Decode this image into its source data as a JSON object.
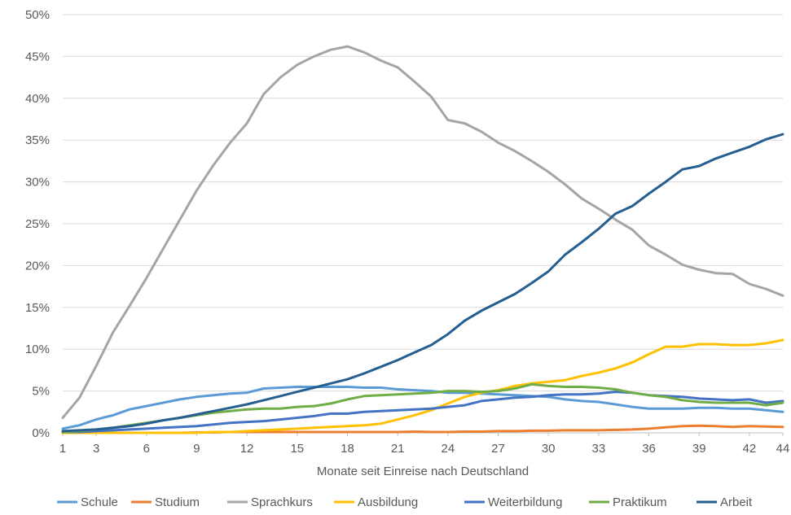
{
  "chart_data": {
    "type": "line",
    "title": "",
    "xlabel": "Monate seit Einreise nach Deutschland",
    "ylabel": "",
    "x": [
      1,
      2,
      3,
      4,
      5,
      6,
      7,
      8,
      9,
      10,
      11,
      12,
      13,
      14,
      15,
      16,
      17,
      18,
      19,
      20,
      21,
      22,
      23,
      24,
      25,
      26,
      27,
      28,
      29,
      30,
      31,
      32,
      33,
      34,
      35,
      36,
      37,
      38,
      39,
      40,
      41,
      42,
      43,
      44
    ],
    "x_ticks": [
      1,
      3,
      6,
      9,
      12,
      15,
      18,
      21,
      24,
      27,
      30,
      33,
      36,
      39,
      42,
      44
    ],
    "xlim": [
      1,
      44
    ],
    "ylim": [
      0,
      50
    ],
    "y_ticks": [
      0,
      5,
      10,
      15,
      20,
      25,
      30,
      35,
      40,
      45,
      50
    ],
    "y_tick_labels": [
      "0%",
      "5%",
      "10%",
      "15%",
      "20%",
      "25%",
      "30%",
      "35%",
      "40%",
      "45%",
      "50%"
    ],
    "grid": "horizontal",
    "legend_position": "bottom",
    "series": [
      {
        "name": "Schule",
        "color": "#5b9bd5",
        "values": [
          0.5,
          0.9,
          1.6,
          2.1,
          2.8,
          3.2,
          3.6,
          4.0,
          4.3,
          4.5,
          4.7,
          4.8,
          5.3,
          5.4,
          5.5,
          5.5,
          5.5,
          5.5,
          5.4,
          5.4,
          5.2,
          5.1,
          5.0,
          4.8,
          4.8,
          4.7,
          4.6,
          4.5,
          4.4,
          4.3,
          4.0,
          3.8,
          3.7,
          3.4,
          3.1,
          2.9,
          2.9,
          2.9,
          3.0,
          3.0,
          2.9,
          2.9,
          2.7,
          2.5
        ]
      },
      {
        "name": "Studium",
        "color": "#ed7d31",
        "values": [
          0,
          0,
          0,
          0,
          0,
          0,
          0,
          0,
          0.05,
          0.05,
          0.1,
          0.1,
          0.1,
          0.1,
          0.1,
          0.1,
          0.1,
          0.1,
          0.1,
          0.1,
          0.1,
          0.15,
          0.1,
          0.1,
          0.15,
          0.15,
          0.2,
          0.2,
          0.25,
          0.25,
          0.3,
          0.3,
          0.3,
          0.35,
          0.4,
          0.5,
          0.65,
          0.8,
          0.85,
          0.8,
          0.7,
          0.8,
          0.75,
          0.7
        ]
      },
      {
        "name": "Sprachkurs",
        "color": "#a5a5a5",
        "values": [
          1.8,
          4.2,
          8.0,
          12.0,
          15.2,
          18.5,
          22.0,
          25.5,
          29.0,
          32.0,
          34.7,
          37.0,
          40.5,
          42.5,
          44.0,
          45.0,
          45.8,
          46.2,
          45.5,
          44.5,
          43.7,
          42.0,
          40.2,
          37.4,
          37.0,
          36.0,
          34.7,
          33.7,
          32.5,
          31.2,
          29.7,
          28.0,
          26.8,
          25.5,
          24.3,
          22.4,
          21.3,
          20.1,
          19.5,
          19.1,
          19.0,
          17.8,
          17.2,
          16.4
        ]
      },
      {
        "name": "Ausbildung",
        "color": "#ffc000",
        "values": [
          0,
          0,
          0,
          0,
          0,
          0,
          0,
          0,
          0,
          0.1,
          0.1,
          0.2,
          0.3,
          0.4,
          0.5,
          0.6,
          0.7,
          0.8,
          0.9,
          1.1,
          1.6,
          2.1,
          2.7,
          3.5,
          4.3,
          4.8,
          5.1,
          5.6,
          5.9,
          6.1,
          6.3,
          6.8,
          7.2,
          7.7,
          8.4,
          9.4,
          10.3,
          10.3,
          10.6,
          10.6,
          10.5,
          10.5,
          10.7,
          11.1
        ]
      },
      {
        "name": "Weiterbildung",
        "color": "#4472c4",
        "values": [
          0.1,
          0.1,
          0.2,
          0.3,
          0.4,
          0.5,
          0.6,
          0.7,
          0.8,
          1.0,
          1.2,
          1.3,
          1.4,
          1.6,
          1.8,
          2.0,
          2.3,
          2.3,
          2.5,
          2.6,
          2.7,
          2.8,
          2.9,
          3.1,
          3.3,
          3.8,
          4.0,
          4.2,
          4.3,
          4.5,
          4.6,
          4.6,
          4.7,
          4.9,
          4.8,
          4.5,
          4.4,
          4.3,
          4.1,
          4.0,
          3.9,
          4.0,
          3.6,
          3.8
        ]
      },
      {
        "name": "Praktikum",
        "color": "#70ad47",
        "values": [
          0.1,
          0.2,
          0.4,
          0.6,
          0.9,
          1.2,
          1.5,
          1.8,
          2.1,
          2.4,
          2.6,
          2.8,
          2.9,
          2.9,
          3.1,
          3.2,
          3.5,
          4.0,
          4.4,
          4.5,
          4.6,
          4.7,
          4.8,
          5.0,
          5.0,
          4.9,
          5.0,
          5.3,
          5.8,
          5.6,
          5.5,
          5.5,
          5.4,
          5.2,
          4.8,
          4.5,
          4.3,
          3.9,
          3.7,
          3.6,
          3.6,
          3.6,
          3.3,
          3.6
        ]
      },
      {
        "name": "Arbeit",
        "color": "#255e91",
        "values": [
          0.2,
          0.3,
          0.4,
          0.6,
          0.8,
          1.1,
          1.5,
          1.8,
          2.2,
          2.6,
          3.0,
          3.4,
          3.9,
          4.4,
          4.9,
          5.4,
          5.9,
          6.4,
          7.1,
          7.9,
          8.7,
          9.6,
          10.5,
          11.8,
          13.4,
          14.6,
          15.6,
          16.6,
          17.9,
          19.3,
          21.3,
          22.8,
          24.4,
          26.2,
          27.1,
          28.6,
          30.0,
          31.5,
          31.9,
          32.8,
          33.5,
          34.2,
          35.1,
          35.7
        ]
      }
    ]
  }
}
